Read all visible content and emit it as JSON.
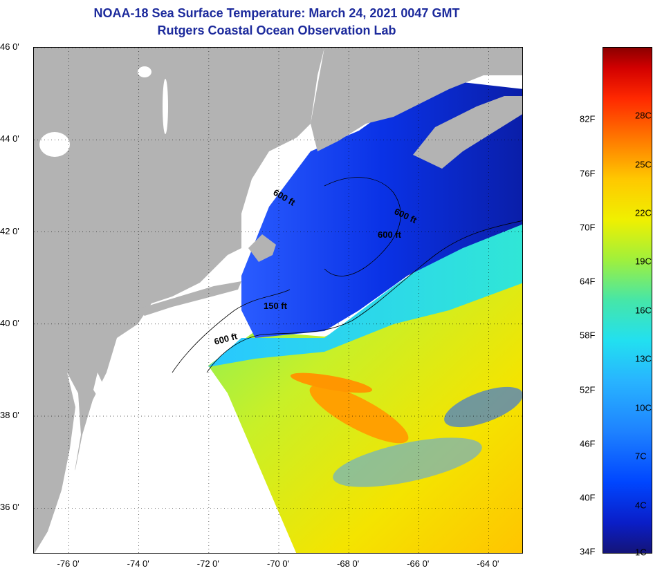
{
  "header": {
    "title": "NOAA-18 Sea Surface Temperature:  March 24, 2021 0047 GMT",
    "subtitle": "Rutgers Coastal Ocean Observation Lab"
  },
  "axes": {
    "lat_labels": [
      "46 0'",
      "44 0'",
      "42 0'",
      "40 0'",
      "38 0'",
      "36 0'"
    ],
    "lat_values": [
      46,
      44,
      42,
      40,
      38,
      36
    ],
    "lon_labels": [
      "-76 0'",
      "-74 0'",
      "-72 0'",
      "-70 0'",
      "-68 0'",
      "-66 0'",
      "-64 0'"
    ],
    "lon_values": [
      -76,
      -74,
      -72,
      -70,
      -68,
      -66,
      -64
    ],
    "lat_range": [
      35,
      46
    ],
    "lon_range": [
      -77,
      -63
    ],
    "grid": "dotted"
  },
  "contours": [
    {
      "label": "600 ft"
    },
    {
      "label": "600 ft"
    },
    {
      "label": "600 ft"
    },
    {
      "label": "150 ft"
    },
    {
      "label": "600 ft"
    }
  ],
  "colorbar": {
    "fahrenheit": [
      "82F",
      "76F",
      "70F",
      "64F",
      "58F",
      "52F",
      "46F",
      "40F",
      "34F"
    ],
    "celsius": [
      "28C",
      "25C",
      "22C",
      "19C",
      "16C",
      "13C",
      "10C",
      "7C",
      "4C",
      "1C"
    ],
    "fahrenheit_values": [
      82,
      76,
      70,
      64,
      58,
      52,
      46,
      40,
      34
    ],
    "celsius_values": [
      28,
      25,
      22,
      19,
      16,
      13,
      10,
      7,
      4,
      1
    ]
  },
  "colors": {
    "land": "#b3b3b3",
    "no_data": "#ffffff",
    "title": "#1c2a9c",
    "cold_water": "#0a32e6",
    "gulf_stream": "#f0f000"
  }
}
